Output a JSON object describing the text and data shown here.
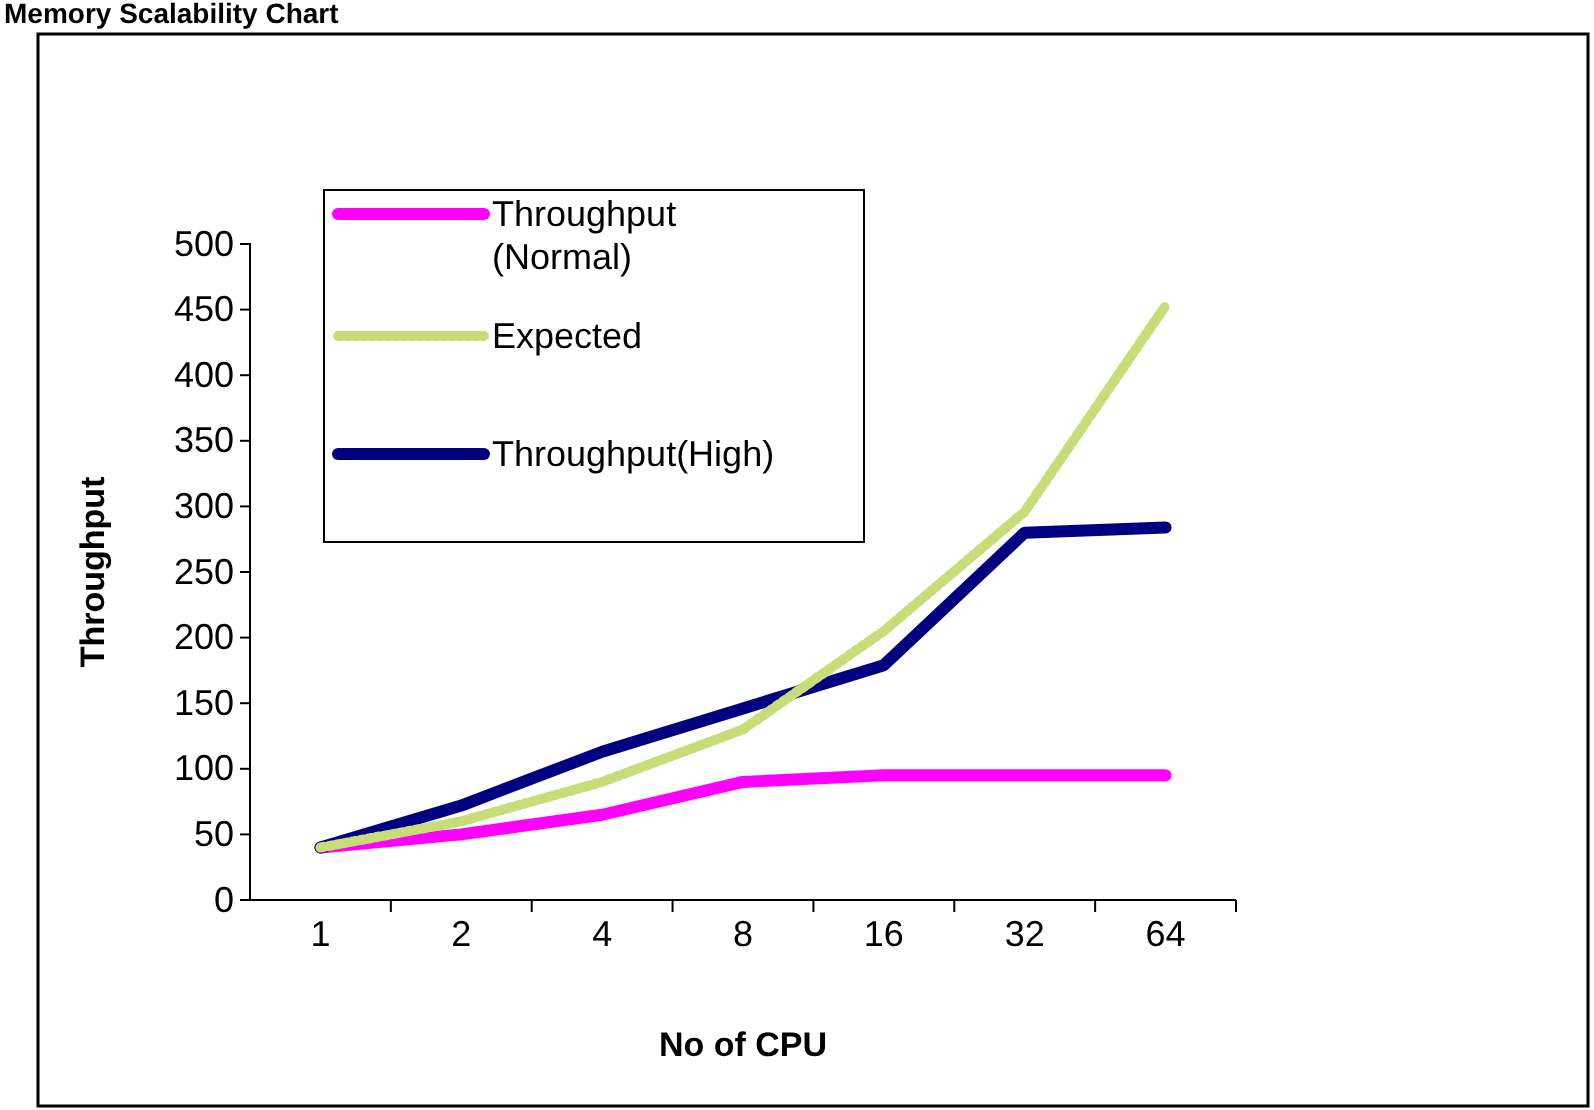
{
  "chart_data": {
    "type": "line",
    "title": "Memory Scalability Chart",
    "xlabel": "No of CPU",
    "ylabel": "Throughput",
    "categories": [
      "1",
      "2",
      "4",
      "8",
      "16",
      "32",
      "64"
    ],
    "ylim": [
      0,
      500
    ],
    "yticks": [
      0,
      50,
      100,
      150,
      200,
      250,
      300,
      350,
      400,
      450,
      500
    ],
    "grid": false,
    "legend": "top left",
    "marker": "none",
    "series": [
      {
        "name": "Throughput (Normal)",
        "color": "#ff00ff",
        "line_style": "solid",
        "values": [
          40,
          50,
          65,
          90,
          95,
          95,
          95
        ]
      },
      {
        "name": "Expected",
        "color": "#c8dc78",
        "line_style": "dotted",
        "values": [
          40,
          60,
          90,
          130,
          205,
          296,
          453
        ]
      },
      {
        "name": "Throughput(High)",
        "color": "#000080",
        "line_style": "solid",
        "values": [
          40,
          72,
          113,
          146,
          179,
          280,
          284
        ]
      }
    ]
  }
}
